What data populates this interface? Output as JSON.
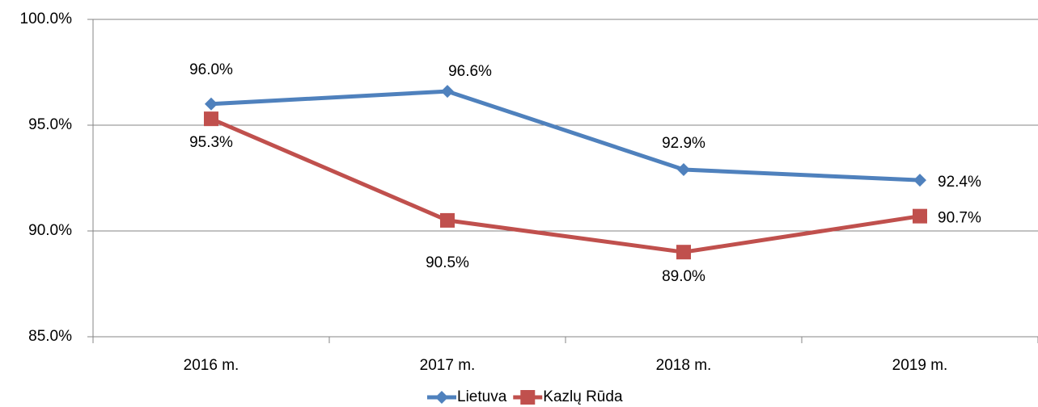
{
  "chart_data": {
    "type": "line",
    "categories": [
      "2016 m.",
      "2017 m.",
      "2018 m.",
      "2019 m."
    ],
    "series": [
      {
        "name": "Lietuva",
        "color": "#4f81bd",
        "marker": "diamond",
        "values": [
          96.0,
          96.6,
          92.9,
          92.4
        ],
        "value_labels": [
          "96.0%",
          "96.6%",
          "92.9%",
          "92.4%"
        ]
      },
      {
        "name": "Kazlų Rūda",
        "color": "#c0504d",
        "marker": "square",
        "values": [
          95.3,
          90.5,
          89.0,
          90.7
        ],
        "value_labels": [
          "95.3%",
          "90.5%",
          "89.0%",
          "90.7%"
        ]
      }
    ],
    "ylim": [
      85,
      100
    ],
    "yticks": [
      {
        "value": 85,
        "label": "85.0%"
      },
      {
        "value": 90,
        "label": "90.0%"
      },
      {
        "value": 95,
        "label": "95.0%"
      },
      {
        "value": 100,
        "label": "100.0%"
      }
    ],
    "grid": true,
    "legend": "bottom"
  }
}
